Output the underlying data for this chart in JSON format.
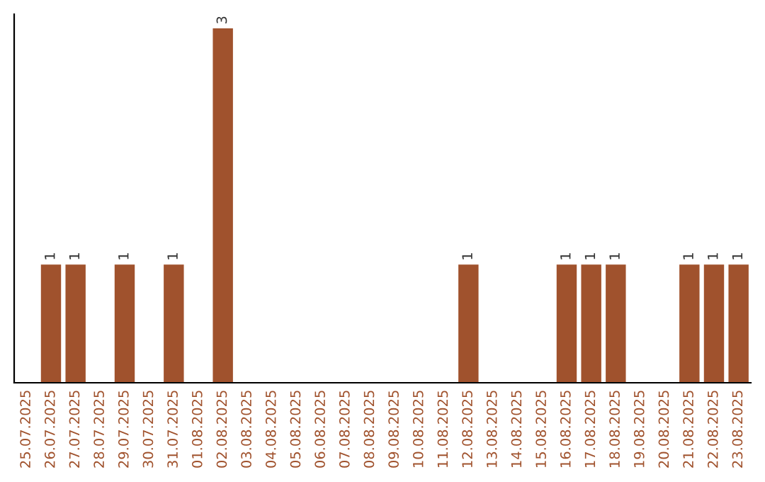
{
  "chart_data": {
    "type": "bar",
    "categories": [
      "25.07.2025",
      "26.07.2025",
      "27.07.2025",
      "28.07.2025",
      "29.07.2025",
      "30.07.2025",
      "31.07.2025",
      "01.08.2025",
      "02.08.2025",
      "03.08.2025",
      "04.08.2025",
      "05.08.2025",
      "06.08.2025",
      "07.08.2025",
      "08.08.2025",
      "09.08.2025",
      "10.08.2025",
      "11.08.2025",
      "12.08.2025",
      "13.08.2025",
      "14.08.2025",
      "15.08.2025",
      "16.08.2025",
      "17.08.2025",
      "18.08.2025",
      "19.08.2025",
      "20.08.2025",
      "21.08.2025",
      "22.08.2025",
      "23.08.2025"
    ],
    "values": [
      0,
      1,
      1,
      0,
      1,
      0,
      1,
      0,
      3,
      0,
      0,
      0,
      0,
      0,
      0,
      0,
      0,
      0,
      1,
      0,
      0,
      0,
      1,
      1,
      1,
      0,
      0,
      1,
      1,
      1
    ],
    "value_labels": [
      null,
      "1",
      "1",
      null,
      "1",
      null,
      "1",
      null,
      "3",
      null,
      null,
      null,
      null,
      null,
      null,
      null,
      null,
      null,
      "1",
      null,
      null,
      null,
      "1",
      "1",
      "1",
      null,
      null,
      "1",
      "1",
      "1"
    ],
    "color": "#a0522d",
    "ylim": [
      0,
      3.12
    ],
    "tick_labels": "x",
    "grid": false,
    "legend": false
  }
}
